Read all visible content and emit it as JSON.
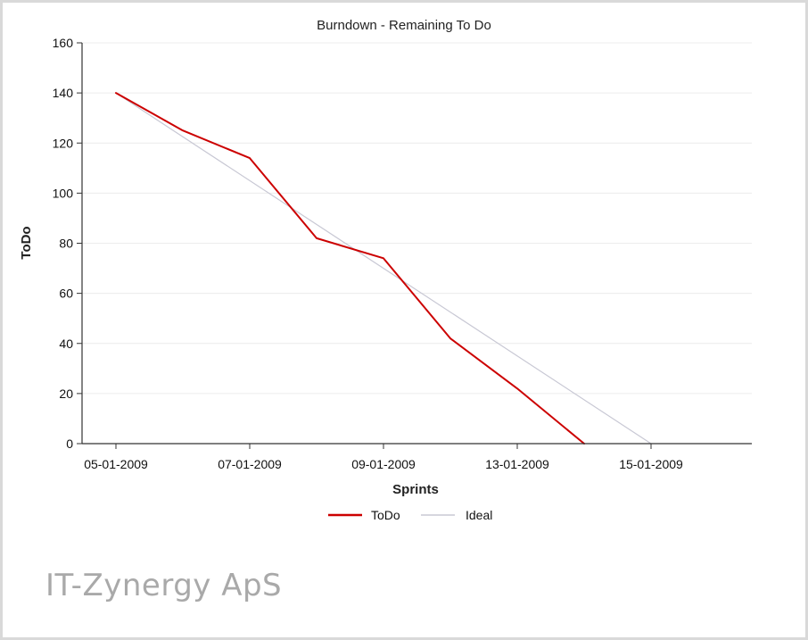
{
  "company_name": "IT-Zynergy ApS",
  "chart_data": {
    "type": "line",
    "title": "Burndown - Remaining To Do",
    "xlabel": "Sprints",
    "ylabel": "ToDo",
    "ylim": [
      0,
      160
    ],
    "yticks": [
      0,
      20,
      40,
      60,
      80,
      100,
      120,
      140,
      160
    ],
    "x_index_range": [
      0,
      9.5
    ],
    "x_tick_labels": [
      {
        "label": "05-01-2009",
        "index": 0
      },
      {
        "label": "07-01-2009",
        "index": 2
      },
      {
        "label": "09-01-2009",
        "index": 4
      },
      {
        "label": "13-01-2009",
        "index": 6
      },
      {
        "label": "15-01-2009",
        "index": 8
      }
    ],
    "grid": "horizontal",
    "legend": "bottom",
    "series": [
      {
        "name": "ToDo",
        "color": "#cc0000",
        "points": [
          [
            0,
            140
          ],
          [
            1,
            125
          ],
          [
            2,
            114
          ],
          [
            3,
            82
          ],
          [
            4,
            74
          ],
          [
            5,
            42
          ],
          [
            6,
            22
          ],
          [
            7,
            0
          ]
        ]
      },
      {
        "name": "Ideal",
        "color": "#c8c8d4",
        "points": [
          [
            0,
            140
          ],
          [
            8,
            0
          ]
        ]
      }
    ]
  }
}
